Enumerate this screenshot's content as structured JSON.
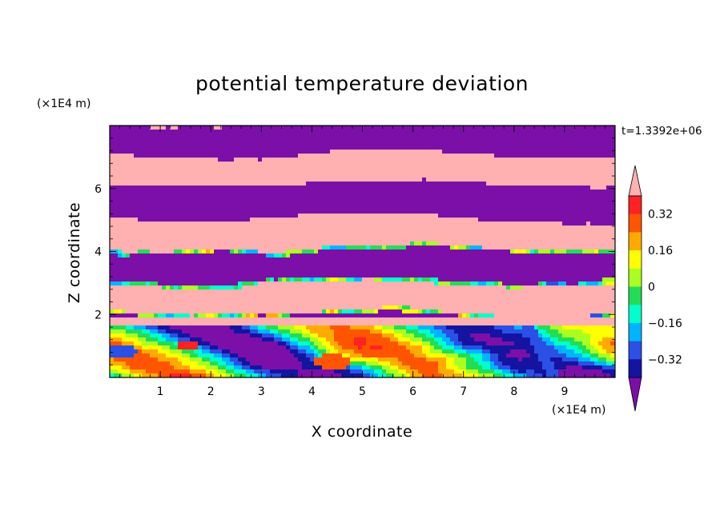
{
  "chart_data": {
    "type": "heatmap",
    "title": "potential temperature deviation",
    "xlabel": "X coordinate",
    "ylabel": "Z coordinate",
    "x_unit": "(×1E4 m)",
    "y_unit": "(×1E4 m)",
    "time_label": "t=1.3392e+06",
    "xlim": [
      0,
      10
    ],
    "ylim": [
      0,
      8
    ],
    "x_ticks": [
      {
        "value": 1,
        "label": "1"
      },
      {
        "value": 2,
        "label": "2"
      },
      {
        "value": 3,
        "label": "3"
      },
      {
        "value": 4,
        "label": "4"
      },
      {
        "value": 5,
        "label": "5"
      },
      {
        "value": 6,
        "label": "6"
      },
      {
        "value": 7,
        "label": "7"
      },
      {
        "value": 8,
        "label": "8"
      },
      {
        "value": 9,
        "label": "9"
      }
    ],
    "y_ticks": [
      {
        "value": 2,
        "label": "2"
      },
      {
        "value": 4,
        "label": "4"
      },
      {
        "value": 6,
        "label": "6"
      }
    ],
    "colorbar": {
      "levels": [
        -0.4,
        -0.32,
        -0.24,
        -0.16,
        -0.08,
        0,
        0.08,
        0.16,
        0.24,
        0.32,
        0.4
      ],
      "colors": [
        "#7b0fa8",
        "#1414a0",
        "#2a50e6",
        "#00b4ff",
        "#00ffcc",
        "#22dd55",
        "#aaff22",
        "#ffff00",
        "#ffaa00",
        "#ff5500",
        "#ff2222",
        "#ffb0b0"
      ],
      "labels": [
        {
          "value": 0.32,
          "label": "0.32"
        },
        {
          "value": 0.16,
          "label": "0.16"
        },
        {
          "value": 0,
          "label": "0"
        },
        {
          "value": -0.16,
          "label": "−0.16"
        },
        {
          "value": -0.32,
          "label": "−0.32"
        }
      ]
    }
  }
}
